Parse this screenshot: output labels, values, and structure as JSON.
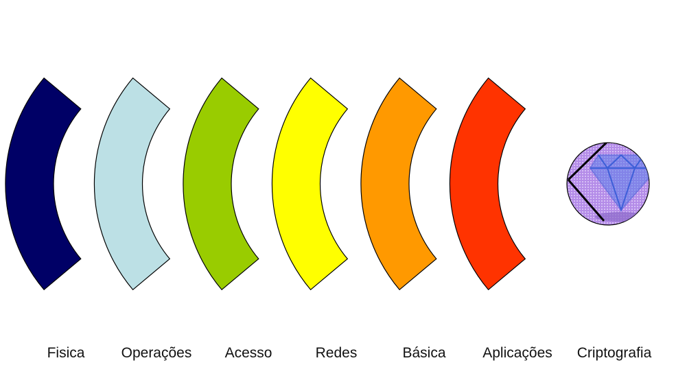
{
  "layers": [
    {
      "id": "fisica",
      "label": "Fisica",
      "color": "#000066"
    },
    {
      "id": "operacoes",
      "label": "Operações",
      "color": "#BCE0E5"
    },
    {
      "id": "acesso",
      "label": "Acesso",
      "color": "#99CC00"
    },
    {
      "id": "redes",
      "label": "Redes",
      "color": "#FFFF00"
    },
    {
      "id": "basica",
      "label": "Básica",
      "color": "#FF9900"
    },
    {
      "id": "aplicacoes",
      "label": "Aplicações",
      "color": "#FF3300"
    }
  ],
  "core": {
    "id": "criptografia",
    "label": "Criptografia",
    "color": "#A67FE0",
    "icon": "diamond-icon"
  }
}
